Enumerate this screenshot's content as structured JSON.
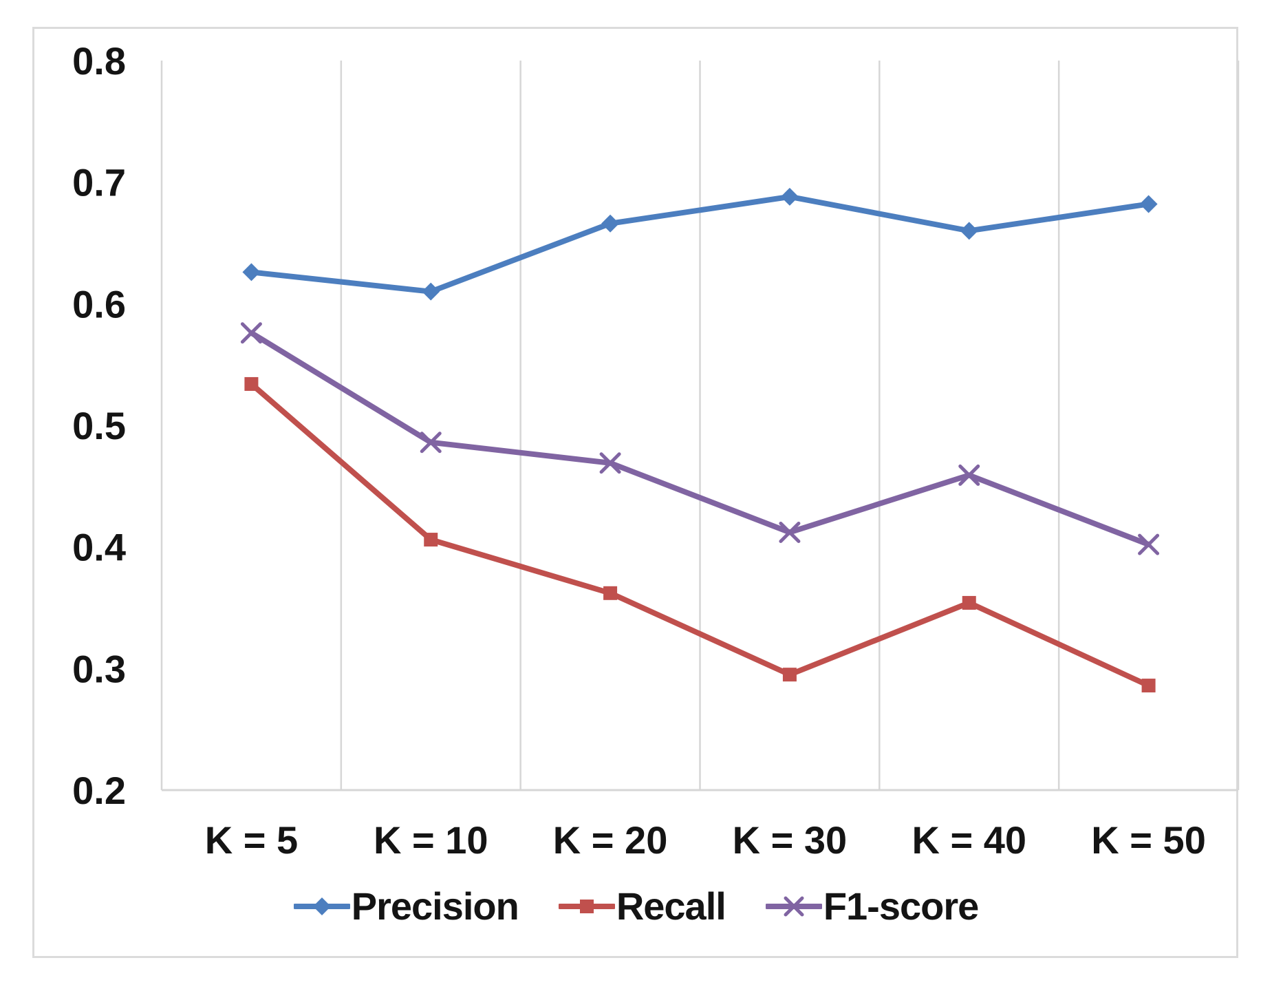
{
  "chart_data": {
    "type": "line",
    "title": "",
    "categories": [
      "K = 5",
      "K = 10",
      "K = 20",
      "K = 30",
      "K = 40",
      "K = 50"
    ],
    "series": [
      {
        "name": "Precision",
        "marker": "diamond",
        "color": "#4c7ebf",
        "values": [
          0.626,
          0.61,
          0.666,
          0.688,
          0.66,
          0.682
        ]
      },
      {
        "name": "Recall",
        "marker": "square",
        "color": "#c0504d",
        "values": [
          0.534,
          0.406,
          0.362,
          0.295,
          0.354,
          0.286
        ]
      },
      {
        "name": "F1-score",
        "marker": "x",
        "color": "#8064a2",
        "values": [
          0.576,
          0.486,
          0.469,
          0.412,
          0.459,
          0.402
        ]
      }
    ],
    "y_ticks": [
      "0.8",
      "0.7",
      "0.6",
      "0.5",
      "0.4",
      "0.3",
      "0.2"
    ],
    "ylim": [
      0.2,
      0.8
    ],
    "xlabel": "",
    "ylabel": "",
    "grid": "vertical-only",
    "gridline_color": "#d6d6d6",
    "axis_line_color": "#d6d6d6",
    "frame_color": "#dbdbdb",
    "legend_position": "bottom"
  }
}
